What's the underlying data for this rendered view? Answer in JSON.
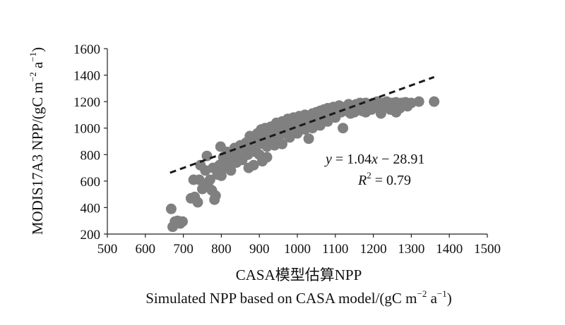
{
  "chart_data": {
    "type": "scatter",
    "xlabel_line1": "CASA模型估算NPP",
    "xlabel_line2_main": "Simulated NPP based on CASA model/(gC m",
    "xlabel_line2_exp1": "−2",
    "xlabel_line2_mid": " a",
    "xlabel_line2_exp2": "−1",
    "xlabel_line2_end": ")",
    "ylabel_main": "MODIS17A3  NPP/(gC m",
    "ylabel_exp1": "−2",
    "ylabel_mid": " a",
    "ylabel_exp2": "−1",
    "ylabel_end": ")",
    "xlim": [
      500,
      1500
    ],
    "ylim": [
      200,
      1600
    ],
    "xticks": [
      500,
      600,
      700,
      800,
      900,
      1000,
      1100,
      1200,
      1300,
      1400,
      1500
    ],
    "yticks": [
      200,
      400,
      600,
      800,
      1000,
      1200,
      1400,
      1600
    ],
    "grid": false,
    "point_color": "#808080",
    "trend_color": "#1a1a1a",
    "trendline": {
      "slope": 1.04,
      "intercept": -28.91,
      "x_range": [
        665,
        1360
      ],
      "style": "dashed"
    },
    "equation": {
      "y": "y",
      "eq": " = 1.04",
      "x": "x",
      "rest": " −  28.91"
    },
    "r2": {
      "R": "R",
      "sup": "2",
      "rest": " = 0.79"
    },
    "points": [
      [
        668,
        390
      ],
      [
        672,
        255
      ],
      [
        678,
        295
      ],
      [
        685,
        300
      ],
      [
        692,
        280
      ],
      [
        698,
        295
      ],
      [
        720,
        470
      ],
      [
        727,
        610
      ],
      [
        730,
        480
      ],
      [
        738,
        440
      ],
      [
        742,
        610
      ],
      [
        745,
        720
      ],
      [
        750,
        540
      ],
      [
        755,
        580
      ],
      [
        758,
        680
      ],
      [
        762,
        790
      ],
      [
        765,
        560
      ],
      [
        770,
        610
      ],
      [
        775,
        530
      ],
      [
        778,
        700
      ],
      [
        782,
        460
      ],
      [
        785,
        490
      ],
      [
        790,
        650
      ],
      [
        795,
        720
      ],
      [
        798,
        860
      ],
      [
        800,
        640
      ],
      [
        805,
        780
      ],
      [
        810,
        700
      ],
      [
        815,
        820
      ],
      [
        820,
        730
      ],
      [
        825,
        680
      ],
      [
        830,
        780
      ],
      [
        835,
        850
      ],
      [
        840,
        740
      ],
      [
        845,
        800
      ],
      [
        850,
        870
      ],
      [
        855,
        760
      ],
      [
        860,
        830
      ],
      [
        865,
        890
      ],
      [
        870,
        800
      ],
      [
        872,
        700
      ],
      [
        875,
        940
      ],
      [
        880,
        850
      ],
      [
        885,
        900
      ],
      [
        890,
        820
      ],
      [
        895,
        960
      ],
      [
        900,
        880
      ],
      [
        905,
        990
      ],
      [
        908,
        750
      ],
      [
        910,
        920
      ],
      [
        915,
        1000
      ],
      [
        920,
        860
      ],
      [
        925,
        950
      ],
      [
        930,
        1010
      ],
      [
        935,
        900
      ],
      [
        940,
        980
      ],
      [
        945,
        1040
      ],
      [
        950,
        930
      ],
      [
        955,
        1000
      ],
      [
        960,
        1050
      ],
      [
        965,
        960
      ],
      [
        970,
        1020
      ],
      [
        975,
        1070
      ],
      [
        980,
        990
      ],
      [
        985,
        1040
      ],
      [
        990,
        1080
      ],
      [
        995,
        1010
      ],
      [
        1000,
        1060
      ],
      [
        1005,
        1090
      ],
      [
        1010,
        1030
      ],
      [
        1015,
        1070
      ],
      [
        1020,
        1100
      ],
      [
        1025,
        1040
      ],
      [
        1030,
        920
      ],
      [
        1035,
        1080
      ],
      [
        1040,
        1110
      ],
      [
        1045,
        1060
      ],
      [
        1050,
        1120
      ],
      [
        1055,
        1090
      ],
      [
        1060,
        1130
      ],
      [
        1065,
        1070
      ],
      [
        1070,
        1140
      ],
      [
        1075,
        1100
      ],
      [
        1080,
        1150
      ],
      [
        1085,
        1080
      ],
      [
        1090,
        1130
      ],
      [
        1095,
        1160
      ],
      [
        1100,
        1110
      ],
      [
        1105,
        1150
      ],
      [
        1110,
        1170
      ],
      [
        1115,
        1120
      ],
      [
        1120,
        1000
      ],
      [
        1125,
        1160
      ],
      [
        1130,
        1130
      ],
      [
        1135,
        1180
      ],
      [
        1140,
        1140
      ],
      [
        1145,
        1170
      ],
      [
        1150,
        1120
      ],
      [
        1155,
        1180
      ],
      [
        1160,
        1150
      ],
      [
        1165,
        1190
      ],
      [
        1170,
        1130
      ],
      [
        1175,
        1170
      ],
      [
        1180,
        1190
      ],
      [
        1185,
        1150
      ],
      [
        1190,
        1180
      ],
      [
        1195,
        1140
      ],
      [
        1200,
        1190
      ],
      [
        1205,
        1160
      ],
      [
        1210,
        1200
      ],
      [
        1215,
        1170
      ],
      [
        1220,
        1130
      ],
      [
        1225,
        1190
      ],
      [
        1230,
        1160
      ],
      [
        1235,
        1200
      ],
      [
        1240,
        1175
      ],
      [
        1245,
        1140
      ],
      [
        1250,
        1190
      ],
      [
        1255,
        1165
      ],
      [
        1260,
        1195
      ],
      [
        1265,
        1170
      ],
      [
        1270,
        1150
      ],
      [
        1275,
        1190
      ],
      [
        1280,
        1180
      ],
      [
        1285,
        1195
      ],
      [
        1290,
        1165
      ],
      [
        1300,
        1190
      ],
      [
        1320,
        1200
      ],
      [
        1360,
        1200
      ],
      [
        885,
        720
      ],
      [
        900,
        800
      ],
      [
        920,
        780
      ],
      [
        940,
        870
      ],
      [
        960,
        880
      ],
      [
        980,
        930
      ],
      [
        1000,
        960
      ],
      [
        1020,
        990
      ],
      [
        1040,
        1000
      ],
      [
        1060,
        1020
      ],
      [
        1080,
        1050
      ],
      [
        1100,
        1080
      ],
      [
        1140,
        1110
      ],
      [
        1180,
        1120
      ],
      [
        1220,
        1110
      ],
      [
        1260,
        1120
      ]
    ]
  }
}
